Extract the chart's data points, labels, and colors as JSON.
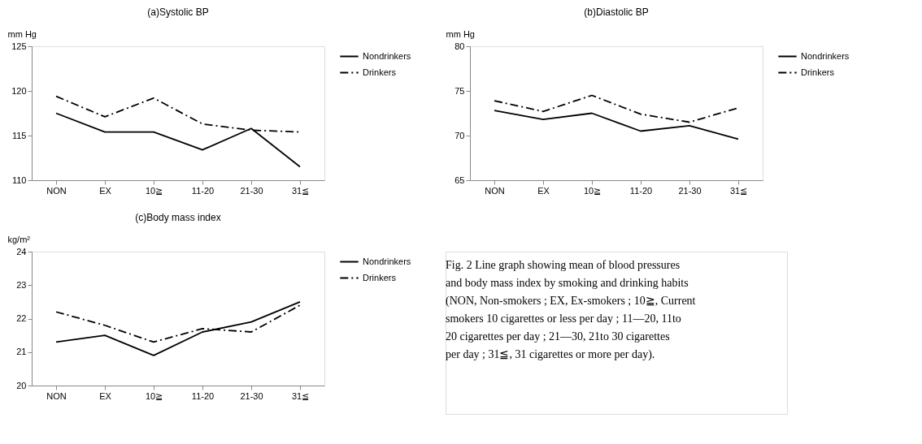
{
  "chart_data": [
    {
      "type": "line",
      "title": "(a)Systolic BP",
      "ylabel": "mm Hg",
      "categories": [
        "NON",
        "EX",
        "10≧",
        "11-20",
        "21-30",
        "31≦"
      ],
      "ylim": [
        110,
        125
      ],
      "yticks": [
        110,
        115,
        120,
        125
      ],
      "legend": "right",
      "marker": "none",
      "grid": false,
      "series": [
        {
          "name": "Nondrinkers",
          "color": "#000000",
          "line_style": "solid",
          "values": [
            117.5,
            115.4,
            115.4,
            113.4,
            115.8,
            111.5
          ]
        },
        {
          "name": "Drinkers",
          "color": "#000000",
          "line_style": "dashed",
          "values": [
            119.4,
            117.1,
            119.2,
            116.3,
            115.6,
            115.4
          ]
        }
      ]
    },
    {
      "type": "line",
      "title": "(b)Diastolic BP",
      "ylabel": "mm Hg",
      "categories": [
        "NON",
        "EX",
        "10≧",
        "11-20",
        "21-30",
        "31≦"
      ],
      "ylim": [
        65,
        80
      ],
      "yticks": [
        65,
        70,
        75,
        80
      ],
      "legend": "right",
      "marker": "none",
      "grid": false,
      "series": [
        {
          "name": "Nondrinkers",
          "color": "#000000",
          "line_style": "solid",
          "values": [
            72.8,
            71.8,
            72.5,
            70.5,
            71.1,
            69.6
          ]
        },
        {
          "name": "Drinkers",
          "color": "#000000",
          "line_style": "dashed",
          "values": [
            73.9,
            72.7,
            74.5,
            72.4,
            71.5,
            73.1
          ]
        }
      ]
    },
    {
      "type": "line",
      "title": "(c)Body mass index",
      "ylabel": "kg/m²",
      "categories": [
        "NON",
        "EX",
        "10≧",
        "11-20",
        "21-30",
        "31≦"
      ],
      "ylim": [
        20,
        24
      ],
      "yticks": [
        20,
        21,
        22,
        23,
        24
      ],
      "legend": "right",
      "marker": "none",
      "grid": false,
      "series": [
        {
          "name": "Nondrinkers",
          "color": "#000000",
          "line_style": "solid",
          "values": [
            21.3,
            21.5,
            20.9,
            21.6,
            21.9,
            22.5
          ]
        },
        {
          "name": "Drinkers",
          "color": "#000000",
          "line_style": "dashed",
          "values": [
            22.2,
            21.8,
            21.3,
            21.7,
            21.6,
            22.4
          ]
        }
      ]
    },
    {
      "type": "other",
      "annotations": [
        "Fig. 2  Line graph showing mean of blood pressures and body mass index by smoking and drinking habits (NON, Non-smokers ; EX, Ex-smokers ; 10≧, Current smokers 10 cigarettes or less per day ; 11—20, 11to 20 cigarettes per day ; 21—30, 21to 30 cigarettes per day ; 31≦, 31 cigarettes or more per day)."
      ]
    }
  ]
}
